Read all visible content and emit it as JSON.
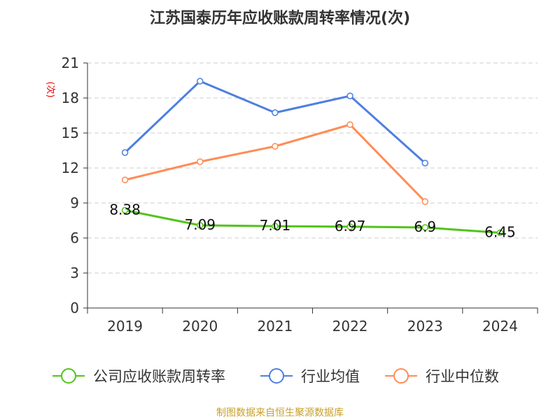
{
  "chart_data": {
    "type": "line",
    "title": "江苏国泰历年应收账款周转率情况(次)",
    "ylabel": "(次)",
    "xlabel": "",
    "ylim": [
      0,
      21
    ],
    "yticks": [
      "0",
      "3",
      "6",
      "9",
      "12",
      "15",
      "18",
      "21"
    ],
    "categories": [
      "2019",
      "2020",
      "2021",
      "2022",
      "2023",
      "2024"
    ],
    "grid": true,
    "legend_placement": "bottom",
    "series": [
      {
        "name": "公司应收账款周转率",
        "color": "#52c41a",
        "values": [
          8.38,
          7.09,
          7.01,
          6.97,
          6.9,
          6.45
        ],
        "labels": [
          "8.38",
          "7.09",
          "7.01",
          "6.97",
          "6.9",
          "6.45"
        ]
      },
      {
        "name": "行业均值",
        "color": "#4e7fe0",
        "values": [
          13.32,
          19.44,
          16.74,
          18.18,
          12.42,
          null
        ]
      },
      {
        "name": "行业中位数",
        "color": "#ff8c55",
        "values": [
          10.98,
          12.54,
          13.86,
          15.72,
          9.12,
          null
        ]
      }
    ],
    "source": "制图数据来自恒生聚源数据库"
  }
}
